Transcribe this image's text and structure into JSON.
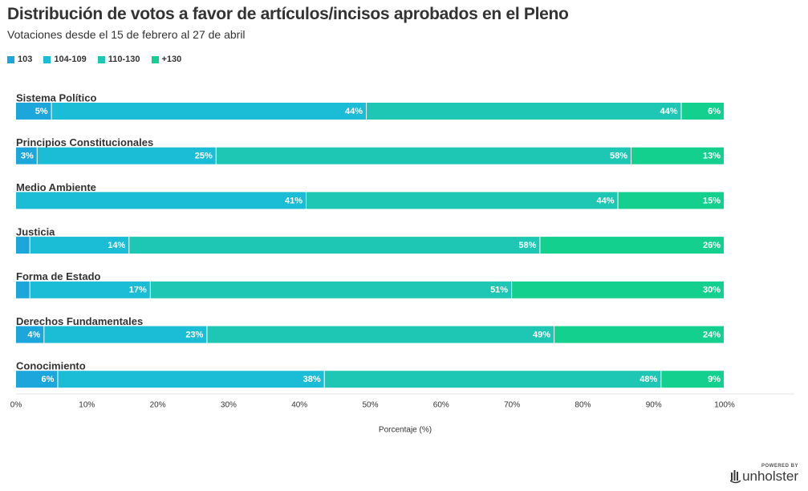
{
  "chart_data": {
    "type": "bar",
    "orientation": "horizontal",
    "stacked": "percent",
    "title": "Distribución de votos a favor de artículos/incisos aprobados en el Pleno",
    "subtitle": "Votaciones desde el 15 de febrero al 27 de abril",
    "xlabel": "Porcentaje (%)",
    "xlim": [
      0,
      100
    ],
    "xticks": [
      "0%",
      "10%",
      "20%",
      "30%",
      "40%",
      "50%",
      "60%",
      "70%",
      "80%",
      "90%",
      "100%"
    ],
    "legend_position": "top-left",
    "categories": [
      "Sistema Político",
      "Principios Constitucionales",
      "Medio Ambiente",
      "Justicia",
      "Forma de Estado",
      "Derechos Fundamentales",
      "Conocimiento"
    ],
    "series": [
      {
        "name": "103",
        "color": "#1ba7dc",
        "values": [
          5,
          3,
          0,
          2,
          2,
          4,
          6
        ],
        "labels": [
          "5%",
          "3%",
          "",
          "",
          "",
          "4%",
          "6%"
        ]
      },
      {
        "name": "104-109",
        "color": "#1bbcd6",
        "values": [
          44,
          25,
          41,
          14,
          17,
          23,
          38
        ],
        "labels": [
          "44%",
          "25%",
          "41%",
          "14%",
          "17%",
          "23%",
          "38%"
        ]
      },
      {
        "name": "110-130",
        "color": "#1ec7b4",
        "values": [
          44,
          58,
          44,
          58,
          51,
          49,
          48
        ],
        "labels": [
          "44%",
          "58%",
          "44%",
          "58%",
          "51%",
          "49%",
          "48%"
        ]
      },
      {
        "name": "+130",
        "color": "#14d08e",
        "values": [
          6,
          13,
          15,
          26,
          30,
          24,
          9
        ],
        "labels": [
          "6%",
          "13%",
          "15%",
          "26%",
          "30%",
          "24%",
          "9%"
        ]
      }
    ]
  },
  "footer": {
    "powered_by": "POWERED BY",
    "brand": "unholster"
  }
}
